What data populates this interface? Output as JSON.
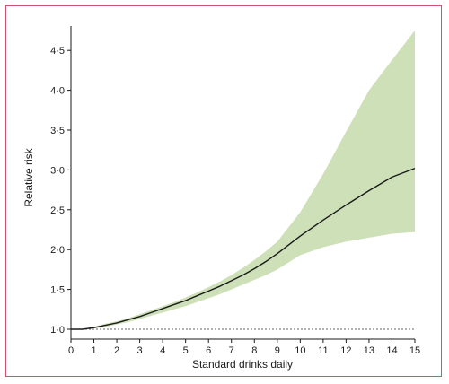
{
  "chart_data": {
    "type": "line",
    "title": "",
    "xlabel": "Standard drinks daily",
    "ylabel": "Relative risk",
    "xlim": [
      0,
      15
    ],
    "ylim": [
      1.0,
      4.75
    ],
    "x_ticks": [
      0,
      1,
      2,
      3,
      4,
      5,
      6,
      7,
      8,
      9,
      10,
      11,
      12,
      13,
      14,
      15
    ],
    "x_tick_labels": [
      "0",
      "1",
      "2",
      "3",
      "4",
      "5",
      "6",
      "7",
      "8",
      "9",
      "10",
      "11",
      "12",
      "13",
      "14",
      "15"
    ],
    "y_ticks": [
      1.0,
      1.5,
      2.0,
      2.5,
      3.0,
      3.5,
      4.0,
      4.5
    ],
    "y_tick_labels": [
      "1·0",
      "1·5",
      "2·0",
      "2·5",
      "3·0",
      "3·5",
      "4·0",
      "4·5"
    ],
    "grid": false,
    "reference_line": {
      "y": 1.0,
      "style": "dashed"
    },
    "x": [
      0,
      0.5,
      1,
      1.5,
      2,
      2.5,
      3,
      3.5,
      4,
      4.5,
      5,
      5.5,
      6,
      6.5,
      7,
      7.5,
      8,
      8.5,
      9,
      10,
      11,
      12,
      13,
      14,
      15
    ],
    "series": [
      {
        "values": [
          1.0,
          1.0,
          1.02,
          1.05,
          1.08,
          1.12,
          1.16,
          1.21,
          1.26,
          1.31,
          1.36,
          1.42,
          1.48,
          1.54,
          1.61,
          1.68,
          1.76,
          1.85,
          1.95,
          2.17,
          2.37,
          2.56,
          2.74,
          2.91,
          3.02
        ],
        "lower": [
          1.0,
          1.0,
          1.01,
          1.03,
          1.06,
          1.09,
          1.13,
          1.17,
          1.21,
          1.25,
          1.29,
          1.34,
          1.39,
          1.44,
          1.5,
          1.56,
          1.62,
          1.68,
          1.75,
          1.93,
          2.03,
          2.1,
          2.15,
          2.2,
          2.22
        ],
        "upper": [
          1.0,
          1.0,
          1.03,
          1.07,
          1.1,
          1.14,
          1.19,
          1.24,
          1.29,
          1.34,
          1.4,
          1.46,
          1.53,
          1.6,
          1.68,
          1.77,
          1.87,
          1.98,
          2.1,
          2.47,
          2.95,
          3.48,
          4.0,
          4.38,
          4.75
        ]
      }
    ],
    "colors": {
      "line": "#1a1a1a",
      "band": "#cde0b8",
      "frame": "#c9556f",
      "axis": "#1a1a1a",
      "reference": "#666666"
    }
  }
}
